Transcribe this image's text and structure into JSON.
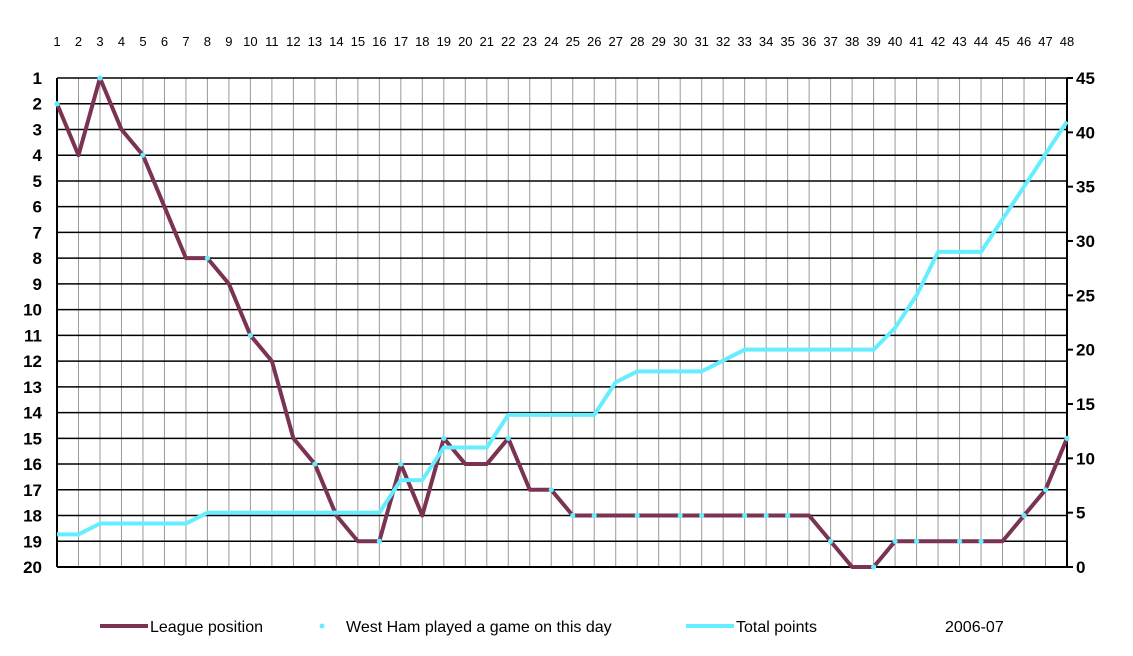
{
  "chart_data": {
    "type": "line",
    "season_label": "2006-07",
    "x": [
      1,
      2,
      3,
      4,
      5,
      6,
      7,
      8,
      9,
      10,
      11,
      12,
      13,
      14,
      15,
      16,
      17,
      18,
      19,
      20,
      21,
      22,
      23,
      24,
      25,
      26,
      27,
      28,
      29,
      30,
      31,
      32,
      33,
      34,
      35,
      36,
      37,
      38,
      39,
      40,
      41,
      42,
      43,
      44,
      45,
      46,
      47,
      48
    ],
    "x_tick_labels": [
      "1",
      "2",
      "3",
      "4",
      "5",
      "6",
      "7",
      "8",
      "9",
      "10",
      "11",
      "12",
      "13",
      "14",
      "15",
      "16",
      "17",
      "18",
      "19",
      "20",
      "21",
      "22",
      "23",
      "24",
      "25",
      "26",
      "27",
      "28",
      "29",
      "30",
      "31",
      "32",
      "33",
      "34",
      "35",
      "36",
      "37",
      "38",
      "39",
      "40",
      "41",
      "42",
      "43",
      "44",
      "45",
      "46",
      "47",
      "48"
    ],
    "y_left": {
      "range": [
        1,
        20
      ],
      "inverted": true,
      "tick_labels": [
        "1",
        "2",
        "3",
        "4",
        "5",
        "6",
        "7",
        "8",
        "9",
        "10",
        "11",
        "12",
        "13",
        "14",
        "15",
        "16",
        "17",
        "18",
        "19",
        "20"
      ]
    },
    "y_right": {
      "range": [
        0,
        45
      ],
      "tick_labels": [
        "0",
        "5",
        "10",
        "15",
        "20",
        "25",
        "30",
        "35",
        "40",
        "45"
      ]
    },
    "grid": true,
    "legend_placement": "bottom",
    "series": [
      {
        "name": "League position",
        "axis": "left",
        "color": "#7a3353",
        "values": [
          2,
          4,
          1,
          3,
          4,
          6,
          8,
          8,
          9,
          11,
          12,
          15,
          16,
          18,
          19,
          19,
          16,
          18,
          15,
          16,
          16,
          15,
          17,
          17,
          18,
          18,
          18,
          18,
          18,
          18,
          18,
          18,
          18,
          18,
          18,
          18,
          19,
          20,
          20,
          19,
          19,
          19,
          19,
          19,
          19,
          18,
          17,
          15
        ]
      },
      {
        "name": "Total points",
        "axis": "right",
        "color": "#66eeff",
        "values": [
          3,
          3,
          4,
          4,
          4,
          4,
          4,
          5,
          5,
          5,
          5,
          5,
          5,
          5,
          5,
          5,
          8,
          8,
          11,
          11,
          11,
          14,
          14,
          14,
          14,
          14,
          17,
          18,
          18,
          18,
          18,
          19,
          20,
          20,
          20,
          20,
          20,
          20,
          20,
          22,
          25,
          29,
          29,
          29,
          32,
          35,
          38,
          41
        ]
      },
      {
        "name": "West Ham played a game on this day",
        "type": "markers",
        "color": "#66eeff",
        "game_days": [
          1,
          3,
          5,
          8,
          10,
          13,
          16,
          17,
          19,
          22,
          24,
          25,
          26,
          28,
          30,
          31,
          33,
          34,
          35,
          37,
          39,
          40,
          41,
          43,
          44,
          46,
          47,
          48
        ]
      }
    ]
  }
}
